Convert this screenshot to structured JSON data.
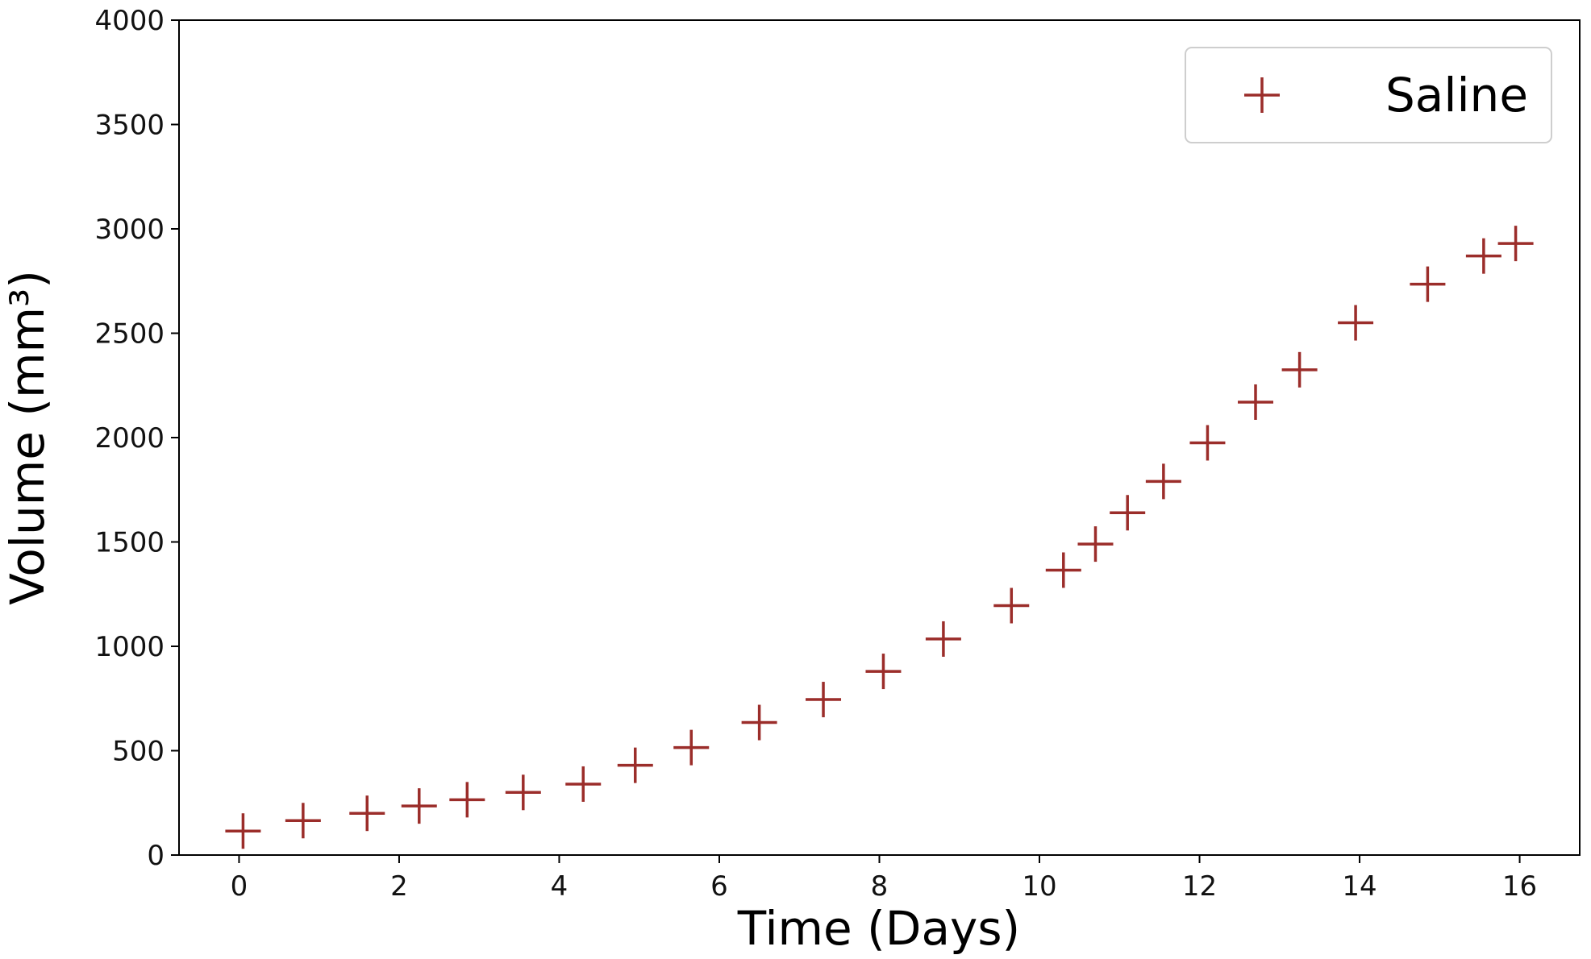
{
  "chart_data": {
    "type": "scatter",
    "title": "",
    "xlabel": "Time (Days)",
    "ylabel": "Volume (mm³)",
    "xlim": [
      -0.75,
      16.75
    ],
    "ylim": [
      0,
      4000
    ],
    "xticks": [
      0,
      2,
      4,
      6,
      8,
      10,
      12,
      14,
      16
    ],
    "yticks": [
      0,
      500,
      1000,
      1500,
      2000,
      2500,
      3000,
      3500,
      4000
    ],
    "grid": false,
    "legend": {
      "placement": "top-right",
      "entries": [
        "Saline"
      ]
    },
    "marker": "plus",
    "series": [
      {
        "name": "Saline",
        "color": "#9b2d2a",
        "points": [
          {
            "x": 0.05,
            "y": 115
          },
          {
            "x": 0.8,
            "y": 165
          },
          {
            "x": 1.6,
            "y": 200
          },
          {
            "x": 2.25,
            "y": 235
          },
          {
            "x": 2.85,
            "y": 265
          },
          {
            "x": 3.55,
            "y": 300
          },
          {
            "x": 4.3,
            "y": 340
          },
          {
            "x": 4.95,
            "y": 430
          },
          {
            "x": 5.65,
            "y": 515
          },
          {
            "x": 6.5,
            "y": 635
          },
          {
            "x": 7.3,
            "y": 745
          },
          {
            "x": 8.05,
            "y": 880
          },
          {
            "x": 8.8,
            "y": 1035
          },
          {
            "x": 9.65,
            "y": 1195
          },
          {
            "x": 10.3,
            "y": 1365
          },
          {
            "x": 10.7,
            "y": 1490
          },
          {
            "x": 11.1,
            "y": 1640
          },
          {
            "x": 11.55,
            "y": 1790
          },
          {
            "x": 12.1,
            "y": 1975
          },
          {
            "x": 12.7,
            "y": 2170
          },
          {
            "x": 13.25,
            "y": 2325
          },
          {
            "x": 13.95,
            "y": 2550
          },
          {
            "x": 14.85,
            "y": 2735
          },
          {
            "x": 15.55,
            "y": 2870
          },
          {
            "x": 15.95,
            "y": 2930
          }
        ]
      }
    ]
  }
}
